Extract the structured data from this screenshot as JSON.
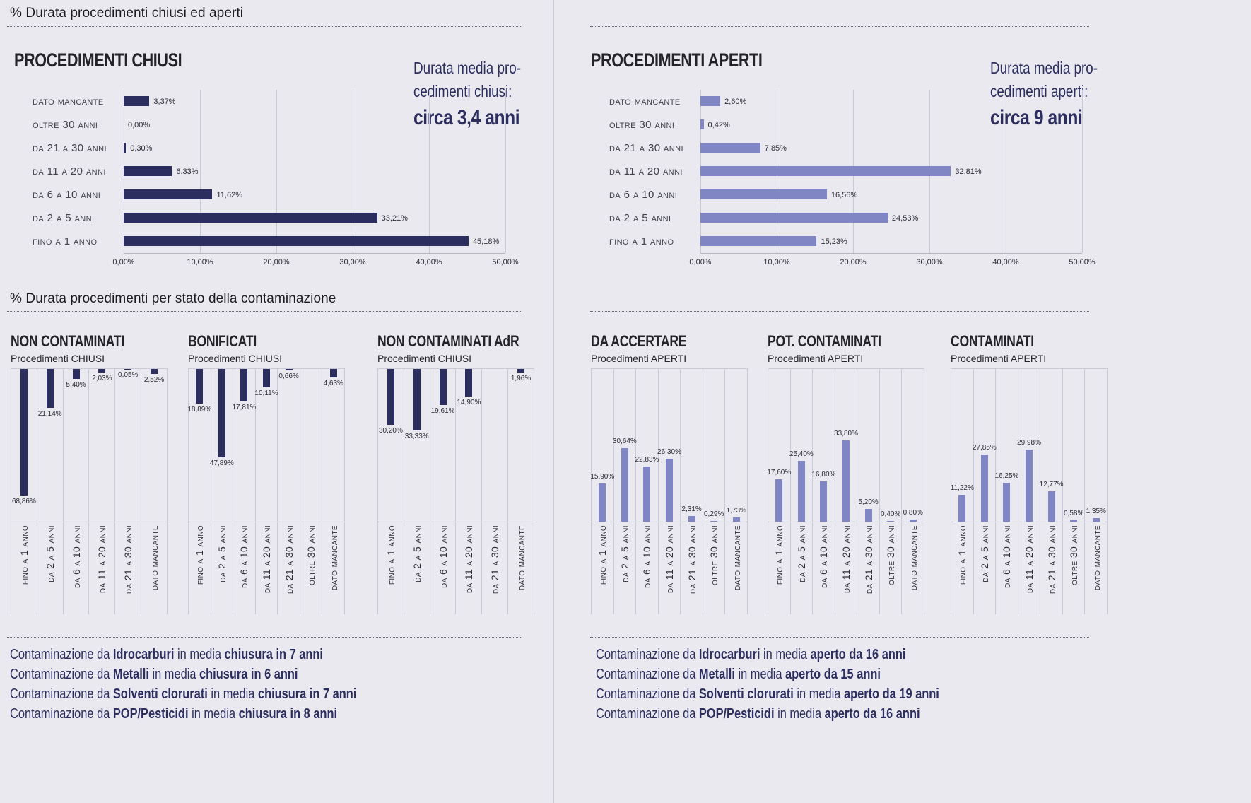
{
  "sections": {
    "top_title": "% Durata procedimenti chiusi ed aperti",
    "bottom_title": "% Durata procedimenti per stato della contaminazione"
  },
  "colors": {
    "background": "#e9e9ef",
    "navy": "#2c2e5f",
    "periwinkle": "#8085c3",
    "gridline": "#c7c9d4",
    "dotted_rule": "#63636d"
  },
  "chart_data": [
    {
      "id": "procedimenti-chiusi",
      "type": "bar",
      "orientation": "horizontal",
      "title": "PROCEDIMENTI CHIUSI",
      "bar_color": "#2c2e5f",
      "categories": [
        "DATO MANCANTE",
        "OLTRE 30 ANNI",
        "DA 21 A 30 ANNI",
        "DA 11 A 20 ANNI",
        "DA 6 A 10 ANNI",
        "DA 2 A 5 ANNI",
        "FINO A 1 ANNO"
      ],
      "values": [
        3.37,
        0.0,
        0.3,
        6.33,
        11.62,
        33.21,
        45.18
      ],
      "value_labels": [
        "3,37%",
        "0,00%",
        "0,30%",
        "6,33%",
        "11,62%",
        "33,21%",
        "45,18%"
      ],
      "xlim": [
        0,
        50
      ],
      "x_ticks": [
        "0,00%",
        "10,00%",
        "20,00%",
        "30,00%",
        "40,00%",
        "50,00%"
      ],
      "annotation_lines": [
        "Durata media pro-",
        "cedimenti chiusi:"
      ],
      "annotation_value": "circa 3,4 anni"
    },
    {
      "id": "procedimenti-aperti",
      "type": "bar",
      "orientation": "horizontal",
      "title": "PROCEDIMENTI APERTI",
      "bar_color": "#8085c3",
      "categories": [
        "DATO MANCANTE",
        "OLTRE 30 ANNI",
        "DA 21 A 30 ANNI",
        "DA 11 A 20 ANNI",
        "DA 6 A 10 ANNI",
        "DA 2 A 5 ANNI",
        "FINO A 1 ANNO"
      ],
      "values": [
        2.6,
        0.42,
        7.85,
        32.81,
        16.56,
        24.53,
        15.23
      ],
      "value_labels": [
        "2,60%",
        "0,42%",
        "7,85%",
        "32,81%",
        "16,56%",
        "24,53%",
        "15,23%"
      ],
      "xlim": [
        0,
        50
      ],
      "x_ticks": [
        "0,00%",
        "10,00%",
        "20,00%",
        "30,00%",
        "40,00%",
        "50,00%"
      ],
      "annotation_lines": [
        "Durata media pro-",
        "cedimenti aperti:"
      ],
      "annotation_value": "circa 9 anni"
    },
    {
      "id": "non-contaminati",
      "type": "bar",
      "orientation": "vertical",
      "direction": "down",
      "title": "NON CONTAMINATI",
      "subtitle": "Procedimenti CHIUSI",
      "bar_color": "#2c2e5f",
      "categories": [
        "FINO A 1 ANNO",
        "DA 2 A 5 ANNI",
        "DA 6 A 10 ANNI",
        "DA 11 A 20 ANNI",
        "DA 21 A 30 ANNI",
        "DATO MANCANTE"
      ],
      "values": [
        68.86,
        21.14,
        5.4,
        2.03,
        0.05,
        2.52
      ],
      "value_labels": [
        "68,86%",
        "21,14%",
        "5,40%",
        "2,03%",
        "0,05%",
        "2,52%"
      ]
    },
    {
      "id": "bonificati",
      "type": "bar",
      "orientation": "vertical",
      "direction": "down",
      "title": "BONIFICATI",
      "subtitle": "Procedimenti CHIUSI",
      "bar_color": "#2c2e5f",
      "categories": [
        "FINO A 1 ANNO",
        "DA 2 A 5 ANNI",
        "DA 6 A 10 ANNI",
        "DA 11 A 20 ANNI",
        "DA 21 A 30 ANNI",
        "OLTRE 30 ANNI",
        "DATO MANCANTE"
      ],
      "values": [
        18.89,
        47.89,
        17.81,
        10.11,
        0.66,
        0,
        4.63
      ],
      "value_labels": [
        "18,89%",
        "47,89%",
        "17,81%",
        "10,11%",
        "0,66%",
        "",
        "4,63%"
      ]
    },
    {
      "id": "non-contaminati-adr",
      "type": "bar",
      "orientation": "vertical",
      "direction": "down",
      "title": "NON CONTAMINATI AdR",
      "subtitle": "Procedimenti CHIUSI",
      "bar_color": "#2c2e5f",
      "categories": [
        "FINO A 1 ANNO",
        "DA 2 A 5 ANNI",
        "DA 6 A 10 ANNI",
        "DA 11 A 20 ANNI",
        "DA 21 A 30 ANNI",
        "DATO MANCANTE"
      ],
      "values": [
        30.2,
        33.33,
        19.61,
        14.9,
        0,
        1.96
      ],
      "value_labels": [
        "30,20%",
        "33,33%",
        "19,61%",
        "14,90%",
        "",
        "1,96%"
      ]
    },
    {
      "id": "da-accertare",
      "type": "bar",
      "orientation": "vertical",
      "direction": "up",
      "title": "DA ACCERTARE",
      "subtitle": "Procedimenti APERTI",
      "bar_color": "#8085c3",
      "categories": [
        "FINO A 1 ANNO",
        "DA 2 A 5 ANNI",
        "DA 6 A 10 ANNI",
        "DA 11 A 20 ANNI",
        "DA 21 A 30 ANNI",
        "OLTRE 30 ANNI",
        "DATO MANCANTE"
      ],
      "values": [
        15.9,
        30.64,
        22.83,
        26.3,
        2.31,
        0.29,
        1.73
      ],
      "value_labels": [
        "15,90%",
        "30,64%",
        "22,83%",
        "26,30%",
        "2,31%",
        "0,29%",
        "1,73%"
      ]
    },
    {
      "id": "pot-contaminati",
      "type": "bar",
      "orientation": "vertical",
      "direction": "up",
      "title": "POT. CONTAMINATI",
      "subtitle": "Procedimenti APERTI",
      "bar_color": "#8085c3",
      "categories": [
        "FINO A 1 ANNO",
        "DA 2 A 5 ANNI",
        "DA 6 A 10 ANNI",
        "DA 11 A 20 ANNI",
        "DA 21 A 30 ANNI",
        "OLTRE 30 ANNI",
        "DATO MANCANTE"
      ],
      "values": [
        17.6,
        25.4,
        16.8,
        33.8,
        5.2,
        0.4,
        0.8
      ],
      "value_labels": [
        "17,60%",
        "25,40%",
        "16,80%",
        "33,80%",
        "5,20%",
        "0,40%",
        "0,80%"
      ]
    },
    {
      "id": "contaminati",
      "type": "bar",
      "orientation": "vertical",
      "direction": "up",
      "title": "CONTAMINATI",
      "subtitle": "Procedimenti APERTI",
      "bar_color": "#8085c3",
      "categories": [
        "FINO A 1 ANNO",
        "DA 2 A 5 ANNI",
        "DA 6 A 10 ANNI",
        "DA 11 A 20 ANNI",
        "DA 21 A 30 ANNI",
        "OLTRE 30 ANNI",
        "DATO MANCANTE"
      ],
      "values": [
        11.22,
        27.85,
        16.25,
        29.98,
        12.77,
        0.58,
        1.35
      ],
      "value_labels": [
        "11,22%",
        "27,85%",
        "16,25%",
        "29,98%",
        "12,77%",
        "0,58%",
        "1,35%"
      ]
    }
  ],
  "contamination_notes": {
    "left": [
      {
        "prefix": "Contaminazione da ",
        "agent": "Idrocarburi",
        "middle": " in media ",
        "result": "chiusura in 7 anni"
      },
      {
        "prefix": "Contaminazione da ",
        "agent": "Metalli",
        "middle": " in media ",
        "result": "chiusura in 6 anni"
      },
      {
        "prefix": "Contaminazione da ",
        "agent": "Solventi clorurati",
        "middle": " in media ",
        "result": "chiusura in 7 anni"
      },
      {
        "prefix": "Contaminazione da ",
        "agent": "POP/Pesticidi",
        "middle": " in media ",
        "result": "chiusura in 8 anni"
      }
    ],
    "right": [
      {
        "prefix": "Contaminazione da ",
        "agent": "Idrocarburi",
        "middle": " in media ",
        "result": "aperto da 16 anni"
      },
      {
        "prefix": "Contaminazione da ",
        "agent": "Metalli",
        "middle": " in media ",
        "result": "aperto da 15 anni"
      },
      {
        "prefix": "Contaminazione da ",
        "agent": "Solventi clorurati",
        "middle": " in media ",
        "result": "aperto da 19 anni"
      },
      {
        "prefix": "Contaminazione da ",
        "agent": "POP/Pesticidi",
        "middle": " in media ",
        "result": "aperto da 16 anni"
      }
    ]
  }
}
